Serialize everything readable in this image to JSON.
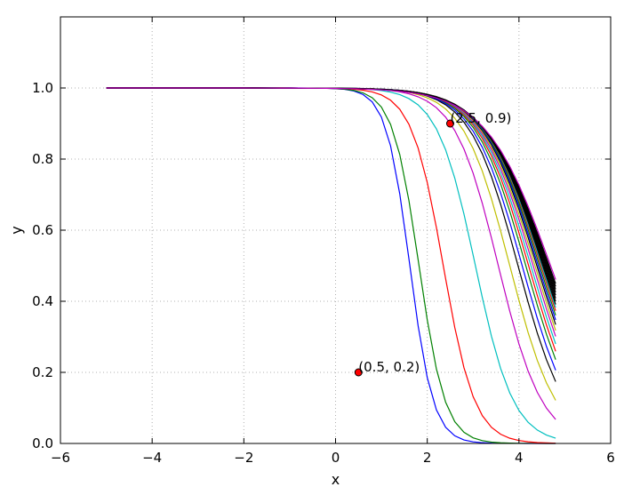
{
  "chart_data": {
    "type": "line",
    "title": "",
    "xlabel": "x",
    "ylabel": "y",
    "xlim": [
      -6,
      6
    ],
    "ylim": [
      0.0,
      1.2
    ],
    "x_ticks": [
      -6,
      -4,
      -2,
      0,
      2,
      4,
      6
    ],
    "x_tick_labels": [
      "−6",
      "−4",
      "−2",
      "0",
      "2",
      "4",
      "6"
    ],
    "y_ticks": [
      0.0,
      0.2,
      0.4,
      0.6,
      0.8,
      1.0
    ],
    "y_tick_labels": [
      "0.0",
      "0.2",
      "0.4",
      "0.6",
      "0.8",
      "1.0"
    ],
    "grid": true,
    "x_range": [
      -5,
      4.8
    ],
    "x_step": 0.2,
    "family_note": "curves y = 1 - 1/(1+exp(-k(x - c))) for increasing k,c; values read from plot",
    "series_params": [
      {
        "c": 1.62,
        "k": 3.9,
        "color": "#0000ff"
      },
      {
        "c": 1.82,
        "k": 3.5,
        "color": "#008000"
      },
      {
        "c": 2.35,
        "k": 2.9,
        "color": "#ff0000"
      },
      {
        "c": 3.05,
        "k": 2.4,
        "color": "#00bfbf"
      },
      {
        "c": 3.55,
        "k": 2.1,
        "color": "#bf00bf"
      },
      {
        "c": 3.8,
        "k": 1.98,
        "color": "#bfbf00"
      },
      {
        "c": 3.98,
        "k": 1.9,
        "color": "#000000"
      },
      {
        "c": 4.07,
        "k": 1.85,
        "color": "#0000ff"
      },
      {
        "c": 4.15,
        "k": 1.81,
        "color": "#008000"
      },
      {
        "c": 4.21,
        "k": 1.78,
        "color": "#ff0000"
      },
      {
        "c": 4.26,
        "k": 1.75,
        "color": "#00bfbf"
      },
      {
        "c": 4.31,
        "k": 1.72,
        "color": "#bf00bf"
      },
      {
        "c": 4.35,
        "k": 1.7,
        "color": "#bfbf00"
      },
      {
        "c": 4.39,
        "k": 1.68,
        "color": "#000000"
      },
      {
        "c": 4.42,
        "k": 1.66,
        "color": "#0000ff"
      },
      {
        "c": 4.45,
        "k": 1.64,
        "color": "#008000"
      },
      {
        "c": 4.48,
        "k": 1.62,
        "color": "#ff0000"
      },
      {
        "c": 4.5,
        "k": 1.6,
        "color": "#00bfbf"
      },
      {
        "c": 4.52,
        "k": 1.58,
        "color": "#000000"
      },
      {
        "c": 4.54,
        "k": 1.56,
        "color": "#000000"
      },
      {
        "c": 4.56,
        "k": 1.54,
        "color": "#000000"
      },
      {
        "c": 4.58,
        "k": 1.52,
        "color": "#000000"
      },
      {
        "c": 4.6,
        "k": 1.5,
        "color": "#000000"
      },
      {
        "c": 4.62,
        "k": 1.48,
        "color": "#000000"
      },
      {
        "c": 4.64,
        "k": 1.46,
        "color": "#000000"
      },
      {
        "c": 4.66,
        "k": 1.44,
        "color": "#000000"
      },
      {
        "c": 4.69,
        "k": 1.42,
        "color": "#bf00bf"
      }
    ],
    "annotations": [
      {
        "x": 0.5,
        "y": 0.2,
        "label": "(0.5, 0.2)",
        "marker_color": "#ff0000"
      },
      {
        "x": 2.5,
        "y": 0.9,
        "label": "(2.5, 0.9)",
        "marker_color": "#ff0000"
      }
    ]
  }
}
